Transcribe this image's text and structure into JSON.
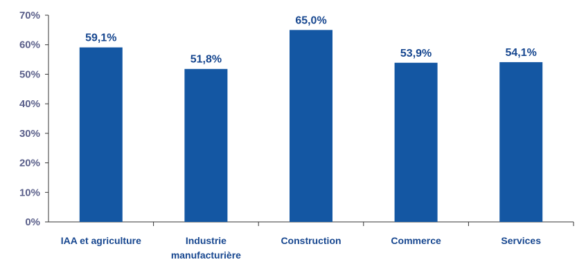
{
  "colors": {
    "bar": "#1457a3",
    "axis": "#333333",
    "tick_label": "#5a5f8a",
    "category_label": "#16468f",
    "data_label": "#16468f"
  },
  "chart_data": {
    "type": "bar",
    "categories": [
      [
        "IAA et agriculture"
      ],
      [
        "Industrie",
        "manufacturière"
      ],
      [
        "Construction"
      ],
      [
        "Commerce"
      ],
      [
        "Services"
      ]
    ],
    "values": [
      59.1,
      51.8,
      65.0,
      53.9,
      54.1
    ],
    "data_labels": [
      "59,1%",
      "51,8%",
      "65,0%",
      "53,9%",
      "54,1%"
    ],
    "y_ticks": [
      0,
      10,
      20,
      30,
      40,
      50,
      60,
      70
    ],
    "y_tick_labels": [
      "0%",
      "10%",
      "20%",
      "30%",
      "40%",
      "50%",
      "60%",
      "70%"
    ],
    "ylim": [
      0,
      70
    ],
    "grid": false,
    "legend": "none",
    "title": "",
    "xlabel": "",
    "ylabel": ""
  }
}
